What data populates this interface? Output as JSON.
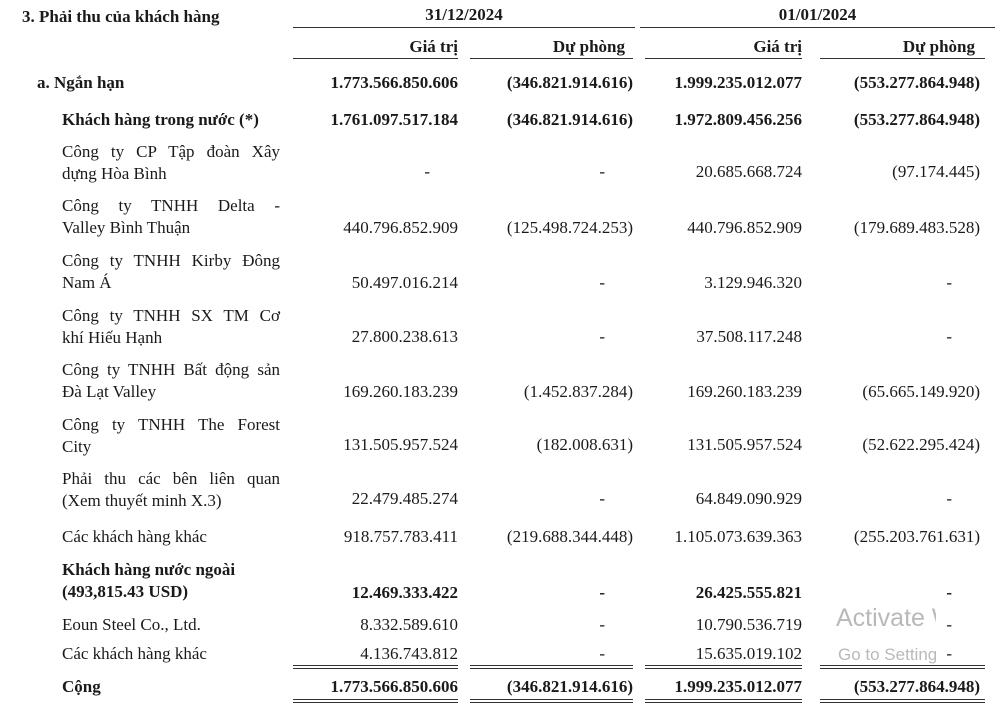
{
  "section_title": "3. Phải thu của khách hàng",
  "periods": [
    "31/12/2024",
    "01/01/2024"
  ],
  "columns": [
    "Giá trị",
    "Dự phòng",
    "Giá trị",
    "Dự phòng"
  ],
  "rows": [
    {
      "label": [
        "a. Ngắn hạn"
      ],
      "bold": true,
      "values": [
        "1.773.566.850.606",
        "(346.821.914.616)",
        "1.999.235.012.077",
        "(553.277.864.948)"
      ]
    },
    {
      "label": [
        "Khách hàng trong nước (*)"
      ],
      "bold": true,
      "values": [
        "1.761.097.517.184",
        "(346.821.914.616)",
        "1.972.809.456.256",
        "(553.277.864.948)"
      ]
    },
    {
      "label": [
        "Công ty CP Tập đoàn Xây",
        "dựng Hòa Bình"
      ],
      "bold": false,
      "values": [
        "-",
        "-",
        "20.685.668.724",
        "(97.174.445)"
      ]
    },
    {
      "label": [
        "Công ty TNHH Delta -",
        "Valley Bình Thuận"
      ],
      "bold": false,
      "values": [
        "440.796.852.909",
        "(125.498.724.253)",
        "440.796.852.909",
        "(179.689.483.528)"
      ]
    },
    {
      "label": [
        "Công ty TNHH Kirby Đông",
        "Nam Á"
      ],
      "bold": false,
      "values": [
        "50.497.016.214",
        "-",
        "3.129.946.320",
        "-"
      ]
    },
    {
      "label": [
        "Công ty TNHH SX TM Cơ",
        "khí Hiếu Hạnh"
      ],
      "bold": false,
      "values": [
        "27.800.238.613",
        "-",
        "37.508.117.248",
        "-"
      ]
    },
    {
      "label": [
        "Công ty TNHH Bất động sản",
        "Đà Lạt Valley"
      ],
      "bold": false,
      "values": [
        "169.260.183.239",
        "(1.452.837.284)",
        "169.260.183.239",
        "(65.665.149.920)"
      ]
    },
    {
      "label": [
        "Công ty TNHH The Forest",
        "City"
      ],
      "bold": false,
      "values": [
        "131.505.957.524",
        "(182.008.631)",
        "131.505.957.524",
        "(52.622.295.424)"
      ]
    },
    {
      "label": [
        "Phải thu các bên liên quan",
        "(Xem thuyết minh X.3)"
      ],
      "bold": false,
      "values": [
        "22.479.485.274",
        "-",
        "64.849.090.929",
        "-"
      ]
    },
    {
      "label": [
        "Các khách hàng khác"
      ],
      "bold": false,
      "values": [
        "918.757.783.411",
        "(219.688.344.448)",
        "1.105.073.639.363",
        "(255.203.761.631)"
      ]
    },
    {
      "label": [
        "Khách hàng nước ngoài",
        "(493,815.43 USD)"
      ],
      "bold": true,
      "values": [
        "12.469.333.422",
        "-",
        "26.425.555.821",
        "-"
      ]
    },
    {
      "label": [
        "Eoun Steel Co., Ltd."
      ],
      "bold": false,
      "values": [
        "8.332.589.610",
        "-",
        "10.790.536.719",
        "-"
      ]
    },
    {
      "label": [
        "Các khách hàng khác"
      ],
      "bold": false,
      "values": [
        "4.136.743.812",
        "-",
        "15.635.019.102",
        "-"
      ]
    },
    {
      "label": [
        "Cộng"
      ],
      "bold": true,
      "values": [
        "1.773.566.850.606",
        "(346.821.914.616)",
        "1.999.235.012.077",
        "(553.277.864.948)"
      ]
    }
  ],
  "watermark": {
    "line1": "Activate Windows",
    "line2": "Go to Settings to activate Windows."
  }
}
